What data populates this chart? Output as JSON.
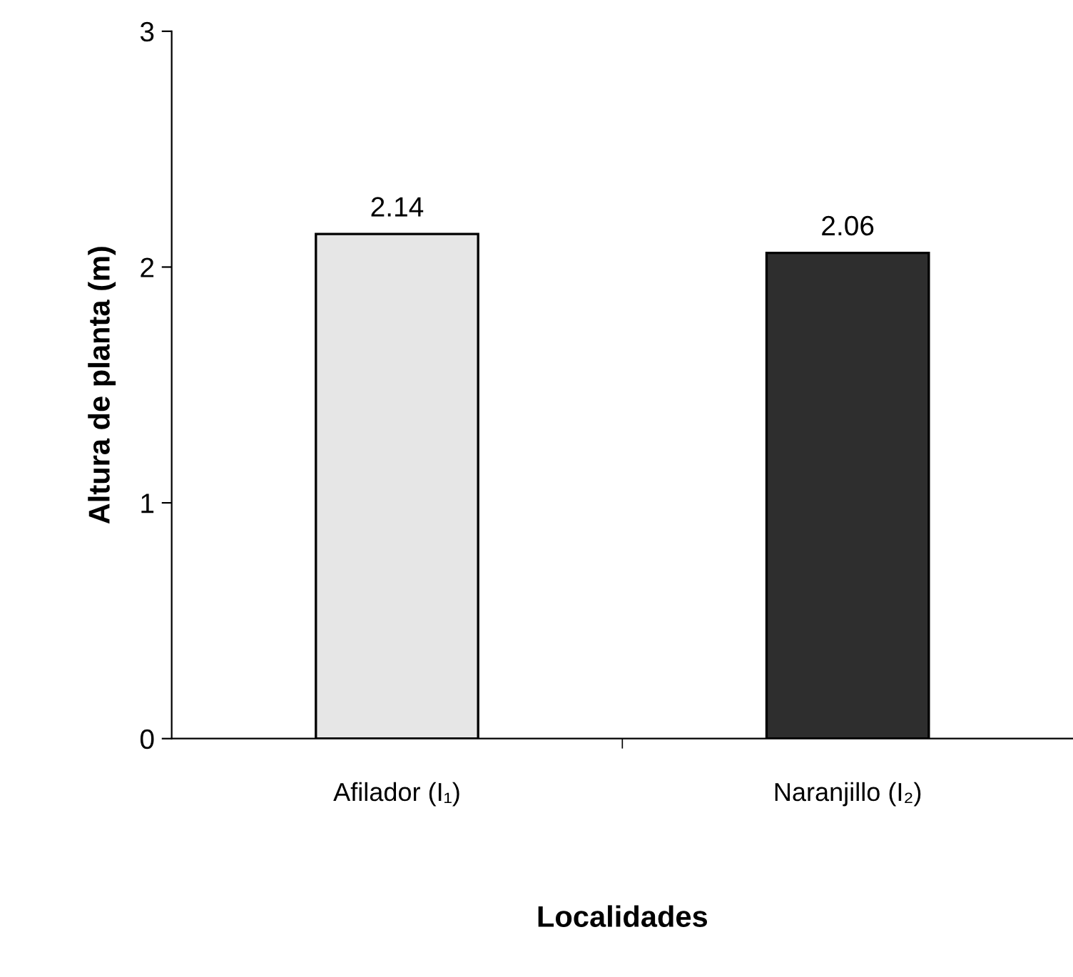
{
  "chart_data": {
    "type": "bar",
    "xlabel": "Localidades",
    "ylabel": "Altura de planta (m)",
    "categories": [
      "Afilador (I₁)",
      "Naranjillo (I₂)"
    ],
    "values": [
      2.14,
      2.06
    ],
    "colors": [
      "#e6e6e6",
      "#2e2e2e"
    ],
    "ylim": [
      0,
      3
    ],
    "yticks": [
      0,
      1,
      2,
      3
    ],
    "data_labels": true
  }
}
